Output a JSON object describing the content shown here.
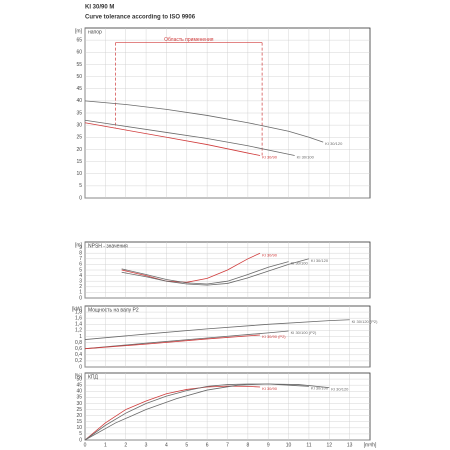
{
  "header": {
    "title": "KI 30/90 M",
    "subtitle": "Curve tolerance according to ISO 9906"
  },
  "chart_data": [
    {
      "type": "line",
      "y_unit": "[m]",
      "label": "напор",
      "xlim": [
        0,
        14
      ],
      "xticks": [
        0,
        1,
        2,
        3,
        4,
        5,
        6,
        7,
        8,
        9,
        10,
        11,
        12,
        13
      ],
      "ylim": [
        0,
        70
      ],
      "yticks": [
        0,
        5,
        10,
        15,
        20,
        25,
        30,
        35,
        40,
        45,
        50,
        55,
        60,
        65
      ],
      "grid": true,
      "range": {
        "x": [
          1.5,
          8.7
        ],
        "y": 64,
        "label": "Область применения"
      },
      "series": [
        {
          "name": "KI 30/120",
          "color": "#6a6a6a",
          "x": [
            0,
            2,
            4,
            6,
            8,
            10,
            11,
            11.7
          ],
          "values": [
            40,
            38.5,
            36.5,
            34,
            31,
            27.5,
            25,
            23
          ]
        },
        {
          "name": "KI 30/100",
          "color": "#6a6a6a",
          "x": [
            0,
            2,
            4,
            6,
            8,
            10,
            10.3
          ],
          "values": [
            32,
            29.5,
            27,
            24.5,
            21.5,
            18,
            17.5
          ]
        },
        {
          "name": "KI 30/90",
          "color": "#d03c3c",
          "x": [
            0,
            2,
            4,
            6,
            8,
            8.6
          ],
          "values": [
            31,
            28,
            25,
            22,
            18.5,
            17.5
          ]
        }
      ]
    },
    {
      "type": "line",
      "y_unit": "[m]",
      "label": "NPSH - значения",
      "xlim": [
        0,
        14
      ],
      "xticks": [
        0,
        1,
        2,
        3,
        4,
        5,
        6,
        7,
        8,
        9,
        10,
        11,
        12,
        13
      ],
      "ylim": [
        0,
        10
      ],
      "yticks": [
        0,
        1,
        2,
        3,
        4,
        5,
        6,
        7,
        8,
        9
      ],
      "grid": true,
      "series": [
        {
          "name": "KI 30/90",
          "color": "#d03c3c",
          "x": [
            1.8,
            3,
            4,
            5,
            6,
            7,
            8,
            8.6
          ],
          "values": [
            5,
            4,
            3,
            2.8,
            3.5,
            5,
            7,
            8
          ]
        },
        {
          "name": "KI 30/100",
          "color": "#6a6a6a",
          "x": [
            1.8,
            3,
            4,
            5,
            6,
            7,
            8,
            9,
            10
          ],
          "values": [
            5.2,
            4.2,
            3.3,
            2.7,
            2.5,
            3,
            4.2,
            5.5,
            6.5
          ]
        },
        {
          "name": "KI 30/120",
          "color": "#6a6a6a",
          "x": [
            1.8,
            3,
            4,
            5,
            6,
            7,
            8,
            9,
            10,
            11
          ],
          "values": [
            4.6,
            3.8,
            3,
            2.5,
            2.3,
            2.6,
            3.6,
            4.8,
            6,
            7
          ]
        }
      ]
    },
    {
      "type": "line",
      "y_unit": "[kW]",
      "label": "Мощность на валу P2",
      "xlim": [
        0,
        14
      ],
      "xticks": [
        0,
        1,
        2,
        3,
        4,
        5,
        6,
        7,
        8,
        9,
        10,
        11,
        12,
        13
      ],
      "ylim": [
        0,
        2
      ],
      "yticks": [
        0,
        {
          "value": 0.2,
          "label": "0,2"
        },
        {
          "value": 0.4,
          "label": "0,4"
        },
        {
          "value": 0.6,
          "label": "0,6"
        },
        {
          "value": 0.8,
          "label": "0,8"
        },
        1,
        {
          "value": 1.2,
          "label": "1,2"
        },
        {
          "value": 1.4,
          "label": "1,4"
        },
        {
          "value": 1.6,
          "label": "1,6"
        },
        {
          "value": 1.8,
          "label": "1,8"
        }
      ],
      "grid": true,
      "series": [
        {
          "name": "KI 30/120 (P2)",
          "color": "#6a6a6a",
          "x": [
            0,
            3,
            6,
            9,
            12,
            13
          ],
          "values": [
            0.9,
            1.08,
            1.25,
            1.4,
            1.52,
            1.55
          ]
        },
        {
          "name": "KI 30/100 (P2)",
          "color": "#6a6a6a",
          "x": [
            0,
            3,
            6,
            9,
            10
          ],
          "values": [
            0.6,
            0.78,
            0.95,
            1.12,
            1.18
          ]
        },
        {
          "name": "KI 30/90 (P2)",
          "color": "#d03c3c",
          "x": [
            0,
            3,
            6,
            8.6
          ],
          "values": [
            0.6,
            0.75,
            0.92,
            1.05
          ]
        }
      ]
    },
    {
      "type": "line",
      "y_unit": "[%]",
      "label": "КПД",
      "xlim": [
        0,
        14
      ],
      "xticks": [
        0,
        1,
        2,
        3,
        4,
        5,
        6,
        7,
        8,
        9,
        10,
        11,
        12,
        13
      ],
      "ylim": [
        0,
        55
      ],
      "yticks": [
        0,
        5,
        10,
        15,
        20,
        25,
        30,
        35,
        40,
        45,
        50
      ],
      "grid": true,
      "x_unit": "[m³/h]",
      "show_xlabels": true,
      "series": [
        {
          "name": "KI 30/90",
          "color": "#d03c3c",
          "x": [
            0,
            1,
            2,
            3,
            4,
            5,
            6,
            7,
            8,
            8.6
          ],
          "values": [
            0,
            14,
            25,
            32,
            38,
            41.5,
            43.5,
            44.2,
            44,
            43.5
          ]
        },
        {
          "name": "KI 30/100",
          "color": "#6a6a6a",
          "x": [
            0,
            1,
            2,
            3,
            4,
            5,
            6,
            7,
            8,
            9,
            10,
            11
          ],
          "values": [
            0,
            12,
            22,
            30,
            36,
            40.5,
            44,
            45.5,
            46,
            46,
            45,
            44
          ]
        },
        {
          "name": "KI 30/120",
          "color": "#6a6a6a",
          "x": [
            0,
            1.5,
            3,
            4.5,
            6,
            7.5,
            9,
            10.5,
            12
          ],
          "values": [
            0,
            14,
            25,
            34,
            41,
            45,
            46,
            45.5,
            43
          ]
        }
      ]
    }
  ]
}
